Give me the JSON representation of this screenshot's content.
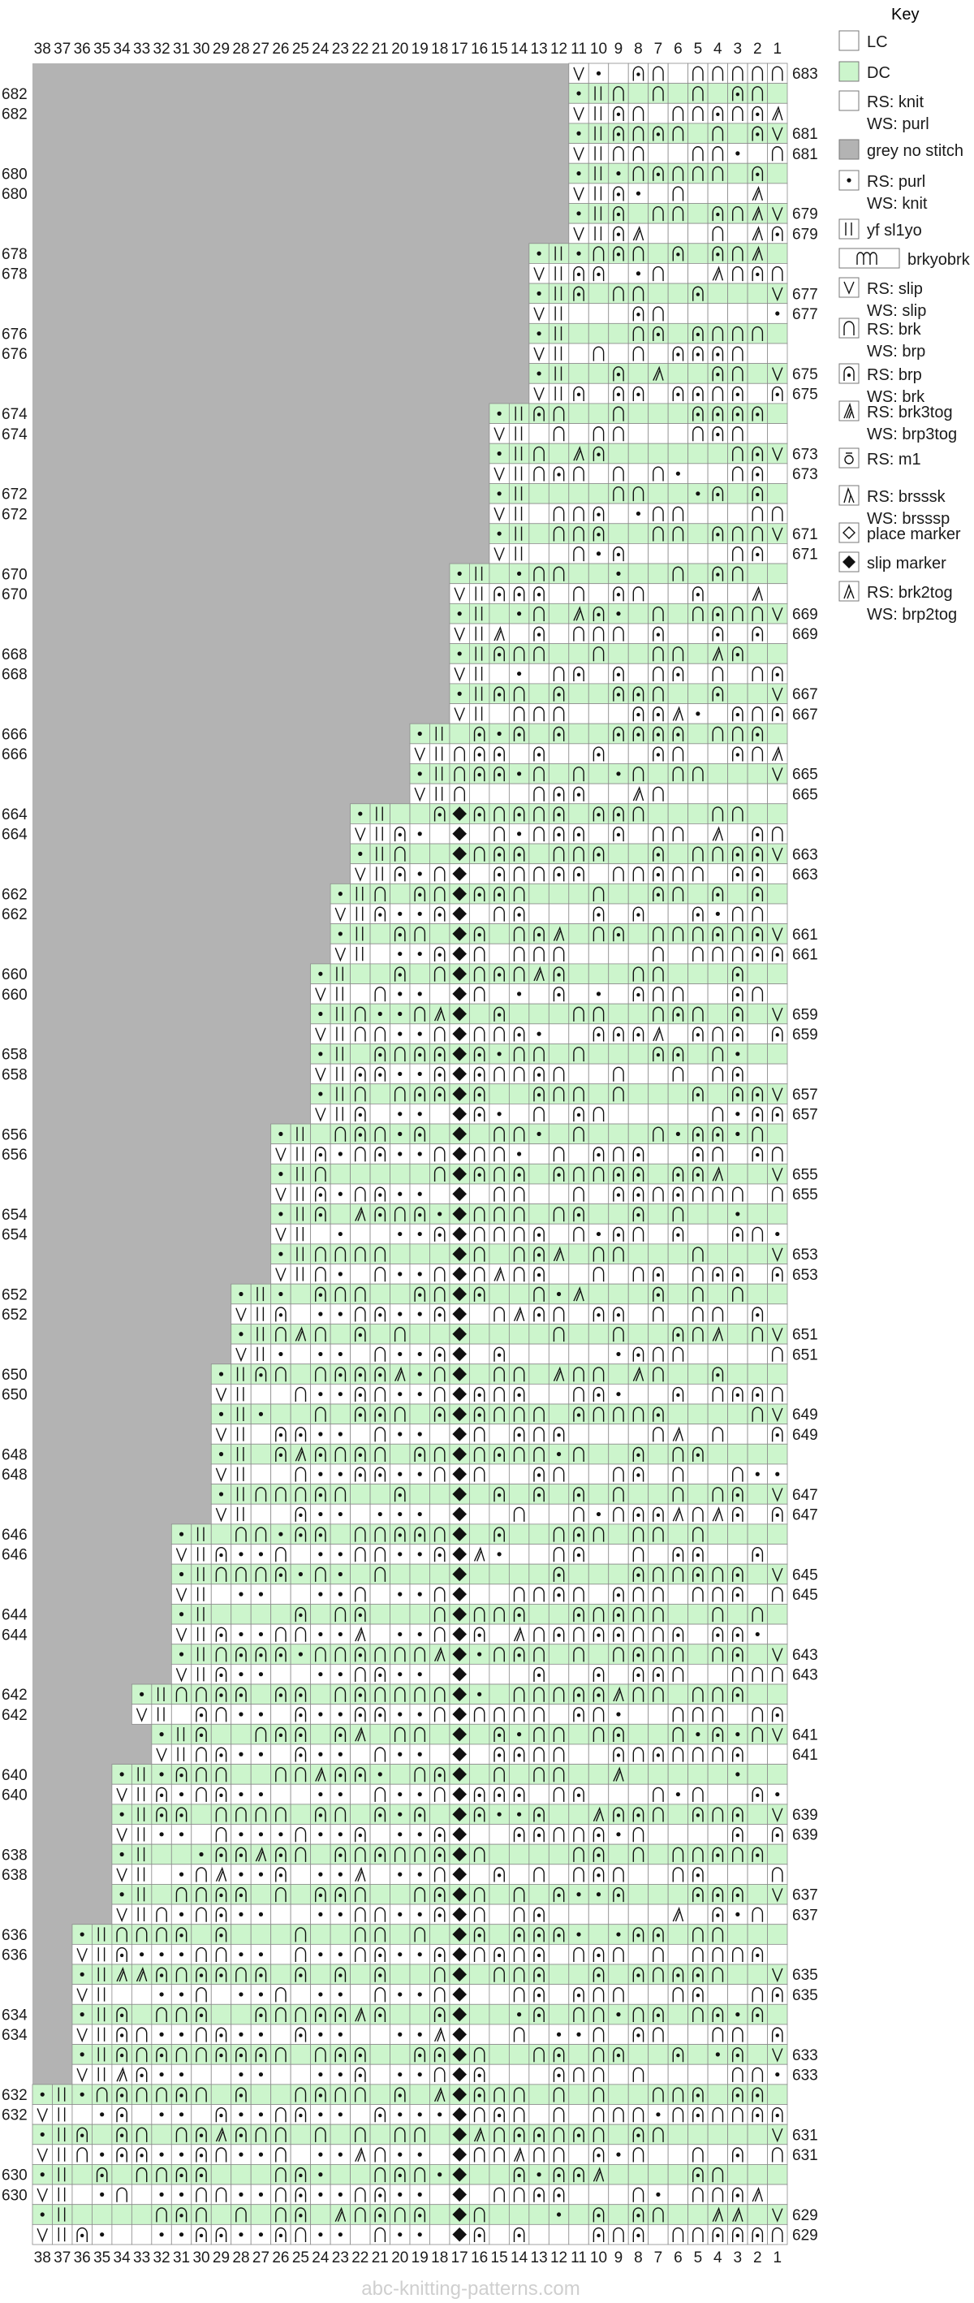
{
  "chart": {
    "columns": [
      38,
      37,
      36,
      35,
      34,
      33,
      32,
      31,
      30,
      29,
      28,
      27,
      26,
      25,
      24,
      23,
      22,
      21,
      20,
      19,
      18,
      17,
      16,
      15,
      14,
      13,
      12,
      11,
      10,
      9,
      8,
      7,
      6,
      5,
      4,
      3,
      2,
      1
    ],
    "top_rows": [
      {
        "n": 683,
        "side": "right",
        "start": 11
      },
      {
        "n": 682,
        "side": "left",
        "start": 11
      },
      {
        "n": 682,
        "side": "left",
        "start": 11
      },
      {
        "n": 681,
        "side": "right",
        "start": 11
      },
      {
        "n": 681,
        "side": "right",
        "start": 11
      },
      {
        "n": 680,
        "side": "left",
        "start": 11
      },
      {
        "n": 680,
        "side": "left",
        "start": 11
      },
      {
        "n": 679,
        "side": "right",
        "start": 11
      },
      {
        "n": 679,
        "side": "right",
        "start": 11
      },
      {
        "n": 678,
        "side": "left",
        "start": 13
      },
      {
        "n": 678,
        "side": "left",
        "start": 13
      },
      {
        "n": 677,
        "side": "right",
        "start": 13
      },
      {
        "n": 677,
        "side": "right",
        "start": 13
      },
      {
        "n": 676,
        "side": "left",
        "start": 13
      },
      {
        "n": 676,
        "side": "left",
        "start": 13
      },
      {
        "n": 675,
        "side": "right",
        "start": 13
      },
      {
        "n": 675,
        "side": "right",
        "start": 13
      },
      {
        "n": 674,
        "side": "left",
        "start": 15
      },
      {
        "n": 674,
        "side": "left",
        "start": 15
      },
      {
        "n": 673,
        "side": "right",
        "start": 15
      },
      {
        "n": 673,
        "side": "right",
        "start": 15
      },
      {
        "n": 672,
        "side": "left",
        "start": 15
      },
      {
        "n": 672,
        "side": "left",
        "start": 15
      },
      {
        "n": 671,
        "side": "right",
        "start": 15
      },
      {
        "n": 671,
        "side": "right",
        "start": 15
      },
      {
        "n": 670,
        "side": "left",
        "start": 17
      },
      {
        "n": 670,
        "side": "left",
        "start": 17
      },
      {
        "n": 669,
        "side": "right",
        "start": 17
      },
      {
        "n": 669,
        "side": "right",
        "start": 17
      },
      {
        "n": 668,
        "side": "left",
        "start": 17
      },
      {
        "n": 668,
        "side": "left",
        "start": 17
      },
      {
        "n": 667,
        "side": "right",
        "start": 17
      },
      {
        "n": 667,
        "side": "right",
        "start": 17
      },
      {
        "n": 666,
        "side": "left",
        "start": 19
      },
      {
        "n": 666,
        "side": "left",
        "start": 19
      },
      {
        "n": 665,
        "side": "right",
        "start": 19
      },
      {
        "n": 665,
        "side": "right",
        "start": 19
      },
      {
        "n": 664,
        "side": "left",
        "start": 22
      },
      {
        "n": 664,
        "side": "left",
        "start": 22
      },
      {
        "n": 663,
        "side": "right",
        "start": 22
      },
      {
        "n": 663,
        "side": "right",
        "start": 22
      },
      {
        "n": 662,
        "side": "left",
        "start": 23
      },
      {
        "n": 662,
        "side": "left",
        "start": 23
      },
      {
        "n": 661,
        "side": "right",
        "start": 23
      },
      {
        "n": 661,
        "side": "right",
        "start": 23
      },
      {
        "n": 660,
        "side": "left",
        "start": 24
      },
      {
        "n": 660,
        "side": "left",
        "start": 24
      },
      {
        "n": 659,
        "side": "right",
        "start": 24
      },
      {
        "n": 659,
        "side": "right",
        "start": 24
      },
      {
        "n": 658,
        "side": "left",
        "start": 24
      },
      {
        "n": 658,
        "side": "left",
        "start": 24
      },
      {
        "n": 657,
        "side": "right",
        "start": 24
      },
      {
        "n": 657,
        "side": "right",
        "start": 24
      },
      {
        "n": 656,
        "side": "left",
        "start": 26
      },
      {
        "n": 656,
        "side": "left",
        "start": 26
      },
      {
        "n": 655,
        "side": "right",
        "start": 26
      },
      {
        "n": 655,
        "side": "right",
        "start": 26
      },
      {
        "n": 654,
        "side": "left",
        "start": 26
      },
      {
        "n": 654,
        "side": "left",
        "start": 26
      },
      {
        "n": 653,
        "side": "right",
        "start": 26
      },
      {
        "n": 653,
        "side": "right",
        "start": 26
      },
      {
        "n": 652,
        "side": "left",
        "start": 28
      },
      {
        "n": 652,
        "side": "left",
        "start": 28
      },
      {
        "n": 651,
        "side": "right",
        "start": 28
      },
      {
        "n": 651,
        "side": "right",
        "start": 28
      },
      {
        "n": 650,
        "side": "left",
        "start": 29
      },
      {
        "n": 650,
        "side": "left",
        "start": 29
      },
      {
        "n": 649,
        "side": "right",
        "start": 29
      },
      {
        "n": 649,
        "side": "right",
        "start": 29
      },
      {
        "n": 648,
        "side": "left",
        "start": 29
      },
      {
        "n": 648,
        "side": "left",
        "start": 29
      },
      {
        "n": 647,
        "side": "right",
        "start": 29
      },
      {
        "n": 647,
        "side": "right",
        "start": 29
      },
      {
        "n": 646,
        "side": "left",
        "start": 31
      },
      {
        "n": 646,
        "side": "left",
        "start": 31
      },
      {
        "n": 645,
        "side": "right",
        "start": 31
      },
      {
        "n": 645,
        "side": "right",
        "start": 31
      },
      {
        "n": 644,
        "side": "left",
        "start": 31
      },
      {
        "n": 644,
        "side": "left",
        "start": 31
      },
      {
        "n": 643,
        "side": "right",
        "start": 31
      },
      {
        "n": 643,
        "side": "right",
        "start": 31
      },
      {
        "n": 642,
        "side": "left",
        "start": 33
      },
      {
        "n": 642,
        "side": "left",
        "start": 33
      },
      {
        "n": 641,
        "side": "right",
        "start": 32
      },
      {
        "n": 641,
        "side": "right",
        "start": 32
      },
      {
        "n": 640,
        "side": "left",
        "start": 34
      },
      {
        "n": 640,
        "side": "left",
        "start": 34
      },
      {
        "n": 639,
        "side": "right",
        "start": 34
      },
      {
        "n": 639,
        "side": "right",
        "start": 34
      },
      {
        "n": 638,
        "side": "left",
        "start": 34
      },
      {
        "n": 638,
        "side": "left",
        "start": 34
      },
      {
        "n": 637,
        "side": "right",
        "start": 34
      },
      {
        "n": 637,
        "side": "right",
        "start": 34
      },
      {
        "n": 636,
        "side": "left",
        "start": 36
      },
      {
        "n": 636,
        "side": "left",
        "start": 36
      },
      {
        "n": 635,
        "side": "right",
        "start": 36
      },
      {
        "n": 635,
        "side": "right",
        "start": 36
      },
      {
        "n": 634,
        "side": "left",
        "start": 36
      },
      {
        "n": 634,
        "side": "left",
        "start": 36
      },
      {
        "n": 633,
        "side": "right",
        "start": 36
      },
      {
        "n": 633,
        "side": "right",
        "start": 36
      },
      {
        "n": 632,
        "side": "left",
        "start": 38
      },
      {
        "n": 632,
        "side": "left",
        "start": 38
      },
      {
        "n": 631,
        "side": "right",
        "start": 38
      },
      {
        "n": 631,
        "side": "right",
        "start": 38
      },
      {
        "n": 630,
        "side": "left",
        "start": 38
      },
      {
        "n": 630,
        "side": "left",
        "start": 38
      },
      {
        "n": 629,
        "side": "right",
        "start": 38
      },
      {
        "n": 629,
        "side": "right",
        "start": 38
      }
    ],
    "colors": {
      "lc": "#ffffff",
      "dc": "#ccf5cc",
      "grey": "#b3b3b3",
      "grid": "#8c8c8c",
      "text": "#1a1a1a"
    },
    "watermark": "abc-knitting-patterns.com"
  },
  "legend": {
    "title": "Key",
    "items": [
      {
        "icon": "lc-swatch",
        "lines": [
          "LC"
        ]
      },
      {
        "icon": "dc-swatch",
        "lines": [
          "DC"
        ]
      },
      {
        "icon": "knit-icon",
        "lines": [
          "RS: knit",
          "WS: purl"
        ]
      },
      {
        "icon": "grey-swatch",
        "lines": [
          "grey no stitch"
        ]
      },
      {
        "icon": "purl-icon",
        "lines": [
          "RS: purl",
          "WS: knit"
        ]
      },
      {
        "icon": "yf-sl1yo-icon",
        "lines": [
          "yf sl1yo"
        ]
      },
      {
        "icon": "brkyobrk-icon",
        "lines": [
          "brkyobrk"
        ]
      },
      {
        "icon": "slip-icon",
        "lines": [
          "RS: slip",
          "WS: slip"
        ]
      },
      {
        "icon": "brk-icon",
        "lines": [
          "RS: brk",
          "WS: brp"
        ]
      },
      {
        "icon": "brp-icon",
        "lines": [
          "RS: brp",
          "WS: brk"
        ]
      },
      {
        "icon": "brk3tog-icon",
        "lines": [
          "RS: brk3tog",
          "WS: brp3tog"
        ]
      },
      {
        "icon": "m1-icon",
        "lines": [
          "RS: m1"
        ]
      },
      {
        "icon": "brsssk-icon",
        "lines": [
          "RS: brsssk",
          "WS: brsssp"
        ]
      },
      {
        "icon": "place-marker-icon",
        "lines": [
          "place marker"
        ]
      },
      {
        "icon": "slip-marker-icon",
        "lines": [
          "slip marker"
        ]
      },
      {
        "icon": "brk2tog-icon",
        "lines": [
          "RS: brk2tog",
          "WS: brp2tog"
        ]
      }
    ]
  }
}
